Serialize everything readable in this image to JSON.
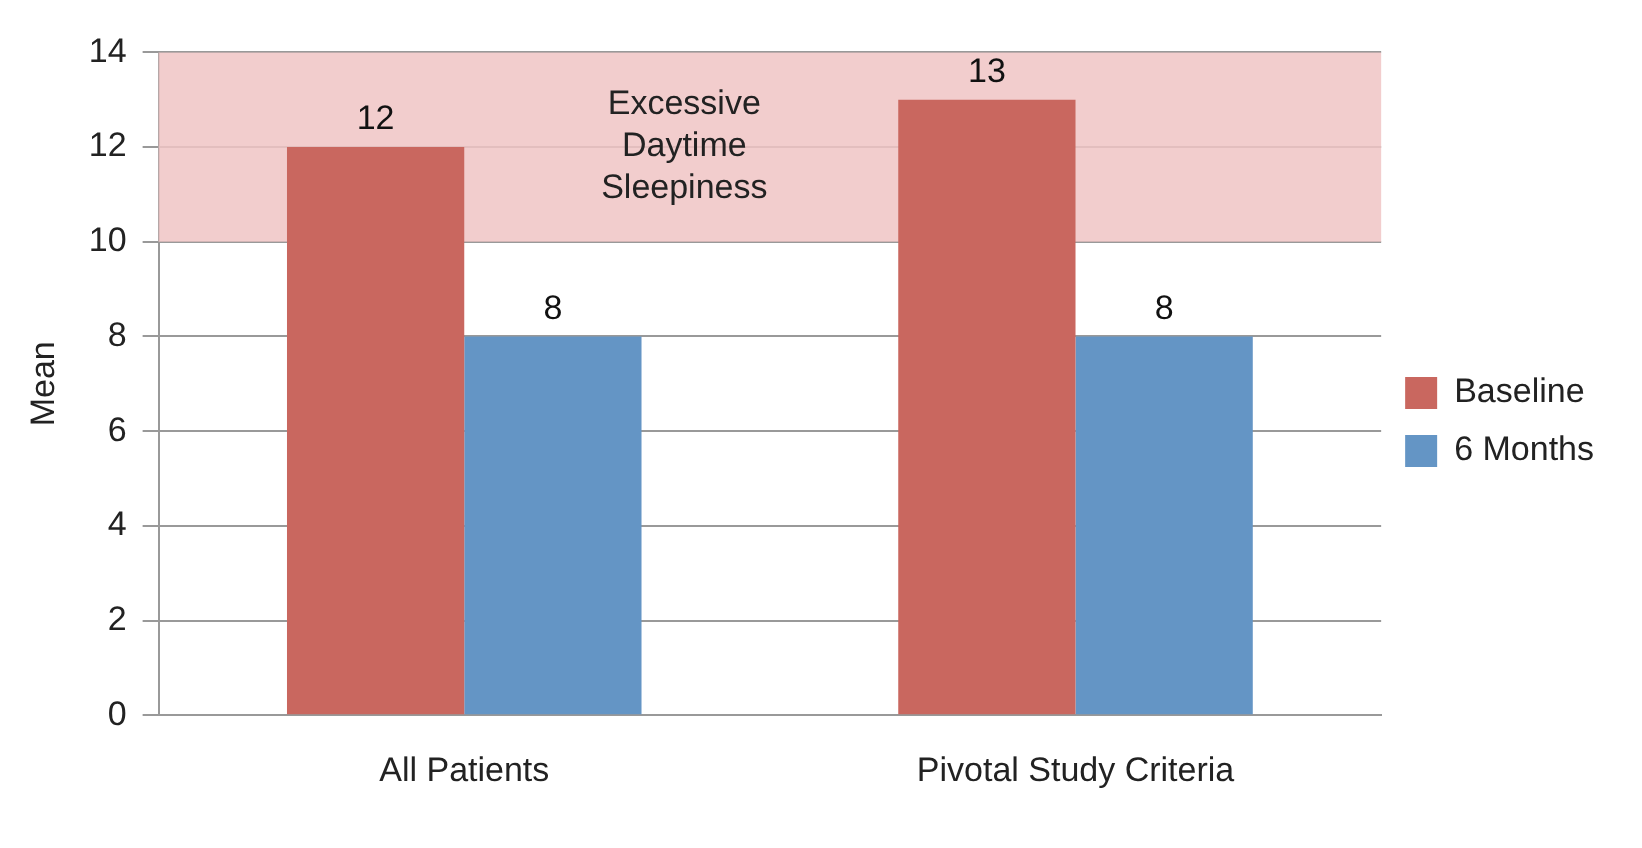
{
  "chart_data": {
    "type": "bar",
    "ylabel": "Mean",
    "categories": [
      "All Patients",
      "Pivotal Study Criteria"
    ],
    "series": [
      {
        "name": "Baseline",
        "color": "#c9675f",
        "values": [
          12,
          13
        ]
      },
      {
        "name": "6 Months",
        "color": "#6495c5",
        "values": [
          8,
          8
        ]
      }
    ],
    "ylim": [
      0,
      14
    ],
    "yticks": [
      0,
      2,
      4,
      6,
      8,
      10,
      12,
      14
    ],
    "grid": "y",
    "legend": "right",
    "data_labels": true,
    "bands": [
      {
        "axis": "y",
        "from": 10,
        "to": 14,
        "label": "Excessive Daytime Sleepiness",
        "color": "#f0c4c4"
      }
    ]
  }
}
